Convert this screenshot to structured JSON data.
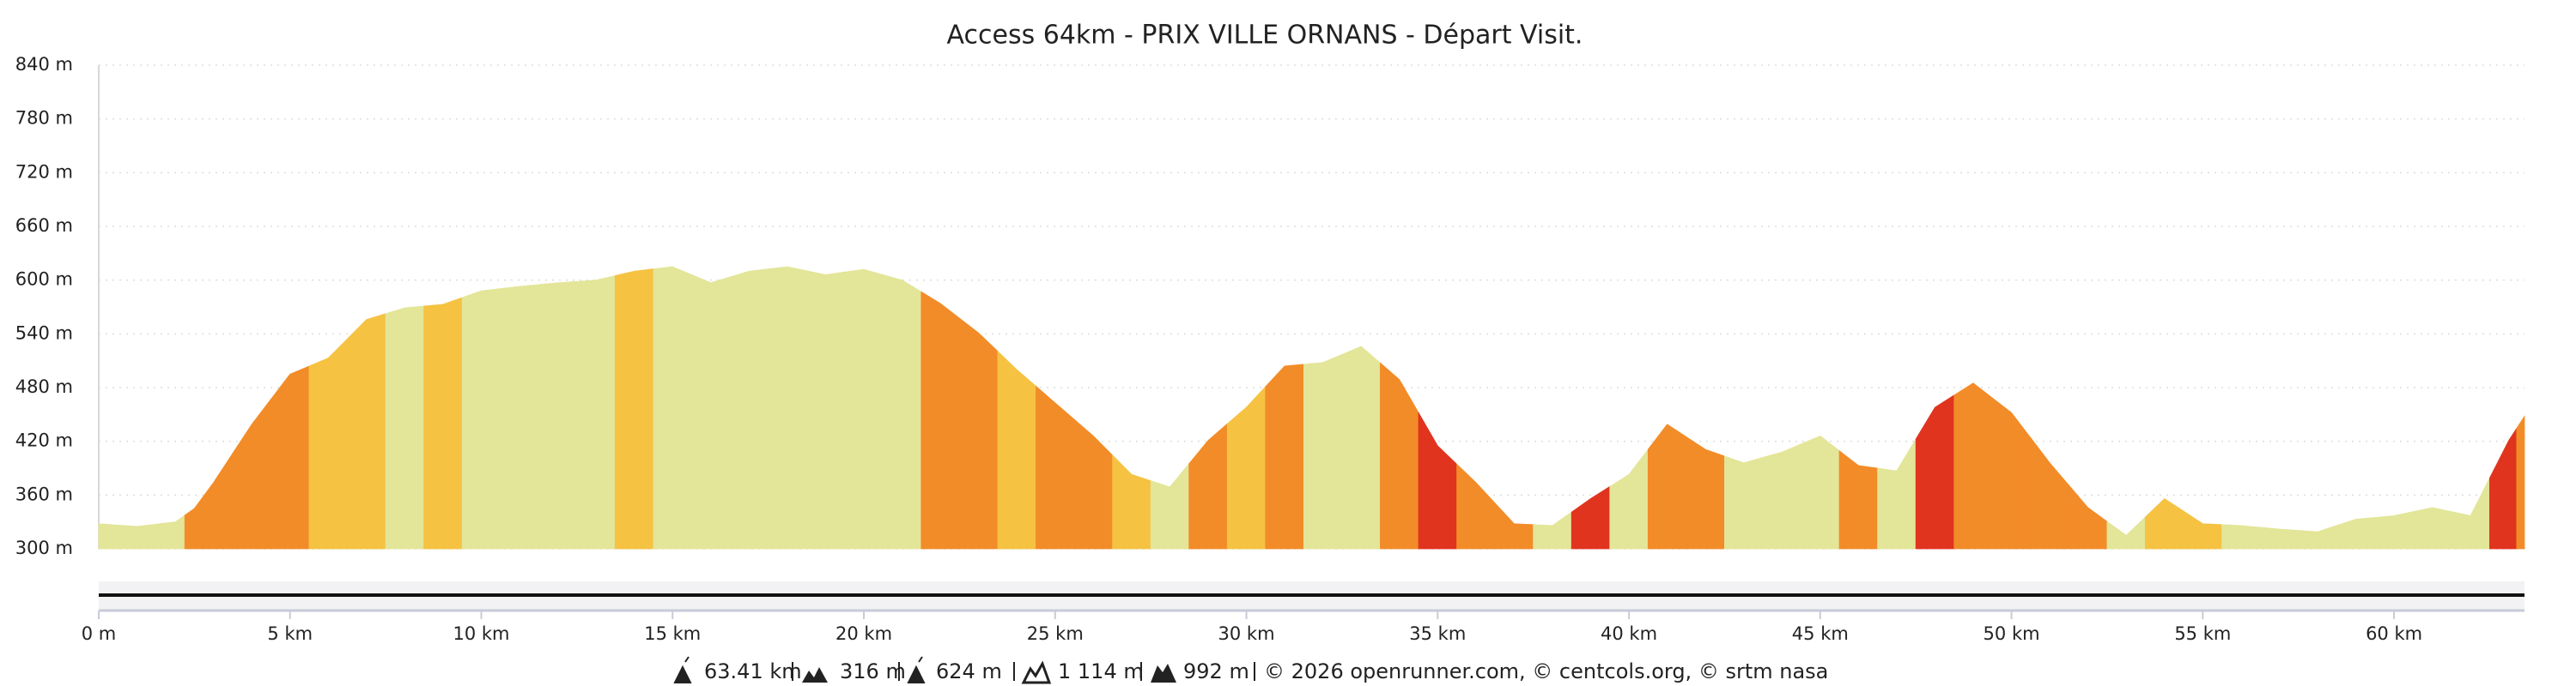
{
  "chart_data": {
    "type": "elevation-profile",
    "title": "Access 64km - PRIX VILLE ORNANS - Départ Visit.",
    "x": [
      0,
      1,
      2,
      2.5,
      3,
      4,
      5,
      6,
      7,
      8,
      9,
      10,
      11,
      12,
      13,
      14,
      15,
      16,
      17,
      18,
      19,
      20,
      21,
      22,
      23,
      24,
      25,
      26,
      27,
      28,
      29,
      30,
      31,
      32,
      33,
      34,
      35,
      36,
      37,
      38,
      39,
      40,
      41,
      42,
      43,
      44,
      45,
      46,
      47,
      48,
      49,
      50,
      51,
      52,
      53,
      54,
      55,
      56,
      57,
      58,
      59,
      60,
      61,
      62,
      63,
      63.41
    ],
    "series": [
      {
        "values": [
          328,
          325,
          330,
          345,
          374,
          439,
          495,
          513,
          556,
          569,
          573,
          588,
          593,
          597,
          600,
          610,
          615,
          597,
          610,
          615,
          606,
          612,
          600,
          574,
          541,
          500,
          463,
          426,
          383,
          369,
          421,
          458,
          504,
          508,
          526,
          489,
          415,
          374,
          328,
          326,
          356,
          383,
          439,
          411,
          396,
          408,
          426,
          393,
          387,
          458,
          485,
          452,
          396,
          346,
          315,
          356,
          328,
          326,
          322,
          319,
          333,
          337,
          346,
          337,
          421,
          448
        ],
        "colors": [
          "#e3e598",
          "#e3e598",
          "#e3e598",
          "#f28c28",
          "#f28c28",
          "#f28c28",
          "#f28c28",
          "#f5c242",
          "#f5c242",
          "#e3e598",
          "#f5c242",
          "#e3e598",
          "#e3e598",
          "#e3e598",
          "#e3e598",
          "#f5c242",
          "#e3e598",
          "#e3e598",
          "#e3e598",
          "#e3e598",
          "#e3e598",
          "#e3e598",
          "#e3e598",
          "#f28c28",
          "#f28c28",
          "#f5c242",
          "#f28c28",
          "#f28c28",
          "#f5c242",
          "#e3e598",
          "#f28c28",
          "#f5c242",
          "#f28c28",
          "#e3e598",
          "#e3e598",
          "#f28c28",
          "#e0341e",
          "#f28c28",
          "#f28c28",
          "#e3e598",
          "#e0341e",
          "#e3e598",
          "#f28c28",
          "#f28c28",
          "#e3e598",
          "#e3e598",
          "#e3e598",
          "#f28c28",
          "#e3e598",
          "#e0341e",
          "#f28c28",
          "#f28c28",
          "#f28c28",
          "#f28c28",
          "#e3e598",
          "#f5c242",
          "#f5c242",
          "#e3e598",
          "#e3e598",
          "#e3e598",
          "#e3e598",
          "#e3e598",
          "#e3e598",
          "#e3e598",
          "#e0341e",
          "#f28c28"
        ]
      }
    ],
    "xlim": [
      0,
      63.41
    ],
    "ylim": [
      300,
      840
    ],
    "yticks": [
      {
        "value": 300,
        "label": "300 m"
      },
      {
        "value": 360,
        "label": "360 m"
      },
      {
        "value": 420,
        "label": "420 m"
      },
      {
        "value": 480,
        "label": "480 m"
      },
      {
        "value": 540,
        "label": "540 m"
      },
      {
        "value": 600,
        "label": "600 m"
      },
      {
        "value": 660,
        "label": "660 m"
      },
      {
        "value": 720,
        "label": "720 m"
      },
      {
        "value": 780,
        "label": "780 m"
      },
      {
        "value": 840,
        "label": "840 m"
      }
    ],
    "xticks": [
      {
        "value": 0,
        "label": "0 m"
      },
      {
        "value": 5,
        "label": "5 km"
      },
      {
        "value": 10,
        "label": "10 km"
      },
      {
        "value": 15,
        "label": "15 km"
      },
      {
        "value": 20,
        "label": "20 km"
      },
      {
        "value": 25,
        "label": "25 km"
      },
      {
        "value": 30,
        "label": "30 km"
      },
      {
        "value": 35,
        "label": "35 km"
      },
      {
        "value": 40,
        "label": "40 km"
      },
      {
        "value": 45,
        "label": "45 km"
      },
      {
        "value": 50,
        "label": "50 km"
      },
      {
        "value": 55,
        "label": "55 km"
      },
      {
        "value": 60,
        "label": "60 km"
      }
    ],
    "grid": true
  },
  "footer": {
    "distance": "63.41 km",
    "elevation_min": "316 m",
    "elevation_max": "624 m",
    "ascent": "1 114 m",
    "descent": "992 m",
    "credits": "© 2026 openrunner.com, © centcols.org, © srtm nasa"
  }
}
